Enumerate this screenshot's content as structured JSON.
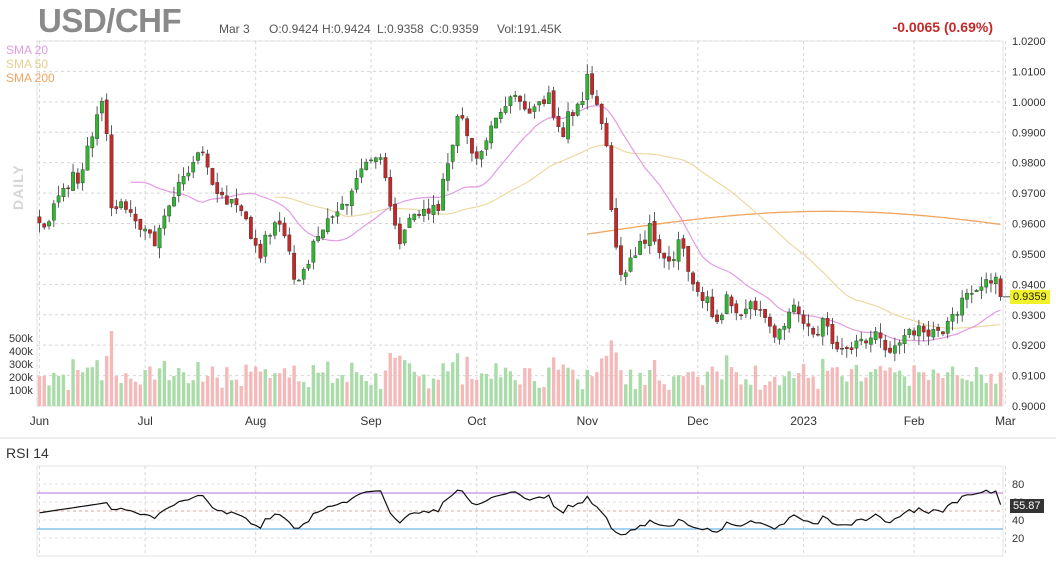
{
  "header": {
    "symbol": "USD/CHF",
    "date": "Mar 3",
    "open": "O:0.9424",
    "high": "H:0.9424",
    "low": "L:0.9358",
    "close": "C:0.9359",
    "volume": "Vol:191.45K",
    "change": "-0.0065 (0.69%)"
  },
  "legend": {
    "sma20": "SMA 20",
    "sma50": "SMA 50",
    "sma200": "SMA 200",
    "daily": "DAILY",
    "rsi_title": "RSI 14"
  },
  "last_price_label": "0.9359",
  "rsi_last_label": "55.87",
  "colors": {
    "up": "#2fb52f",
    "down": "#c62828",
    "vol_up": "#a9dca9",
    "vol_down": "#f6b9b9",
    "sma20": "#e39be3",
    "sma50": "#ecd9a3",
    "sma200": "#f0a55e",
    "rsi_line": "#111111",
    "rsi_upper": "#c58ee6",
    "rsi_lower": "#6fb6e8",
    "last_tag": "#f2f22a"
  },
  "chart_data": {
    "type": "candlestick",
    "title": "USD/CHF",
    "period": "Daily",
    "x_labels": [
      "Jun",
      "Jul",
      "Aug",
      "Sep",
      "Oct",
      "Nov",
      "Dec",
      "2023",
      "Feb",
      "Mar"
    ],
    "x_label_bar_index": [
      0,
      22,
      45,
      69,
      91,
      114,
      137,
      159,
      182,
      201
    ],
    "price_axis": {
      "ticks": [
        "1.0200",
        "1.0100",
        "1.0000",
        "0.9900",
        "0.9800",
        "0.9700",
        "0.9600",
        "0.9500",
        "0.9400",
        "0.9300",
        "0.9200",
        "0.9100",
        "0.9000"
      ],
      "range": [
        0.9,
        1.02
      ]
    },
    "volume_axis": {
      "ticks": [
        "500k",
        "400k",
        "300k",
        "200k",
        "100k"
      ],
      "max": 650000
    },
    "rsi_axis": {
      "ticks": [
        "80",
        "60",
        "40",
        "20"
      ],
      "range": [
        0,
        100
      ],
      "upper_band": 70,
      "lower_band": 30
    },
    "close": [
      0.9602,
      0.9588,
      0.9606,
      0.9665,
      0.9691,
      0.9716,
      0.9714,
      0.9769,
      0.9732,
      0.9777,
      0.9855,
      0.9885,
      0.9958,
      1.0002,
      0.9895,
      0.9651,
      0.9648,
      0.9672,
      0.9646,
      0.9636,
      0.9608,
      0.958,
      0.9582,
      0.9568,
      0.9526,
      0.9585,
      0.9625,
      0.9658,
      0.9686,
      0.9736,
      0.9755,
      0.9766,
      0.9801,
      0.9833,
      0.9832,
      0.9785,
      0.9728,
      0.9698,
      0.9694,
      0.9663,
      0.968,
      0.9661,
      0.9642,
      0.9615,
      0.955,
      0.9528,
      0.9486,
      0.9562,
      0.9561,
      0.9603,
      0.9597,
      0.9559,
      0.9509,
      0.9416,
      0.9414,
      0.9449,
      0.9466,
      0.9542,
      0.9558,
      0.9579,
      0.9616,
      0.9623,
      0.9639,
      0.9664,
      0.9663,
      0.9707,
      0.9749,
      0.978,
      0.9802,
      0.9809,
      0.9816,
      0.9817,
      0.975,
      0.9657,
      0.9594,
      0.9533,
      0.9579,
      0.9618,
      0.9631,
      0.9626,
      0.9647,
      0.9633,
      0.966,
      0.9642,
      0.9746,
      0.9797,
      0.9858,
      0.9953,
      0.9946,
      0.9888,
      0.9831,
      0.9814,
      0.9837,
      0.9872,
      0.9921,
      0.9947,
      0.9966,
      0.9985,
      1.0017,
      1.0022,
      1.0001,
      0.9976,
      0.9962,
      0.9984,
      1.0001,
      0.9994,
      1.003,
      0.9949,
      0.9918,
      0.9885,
      0.9968,
      0.9954,
      0.9993,
      1.0002,
      1.0091,
      1.0024,
      0.9991,
      0.9928,
      0.9855,
      0.9645,
      0.9522,
      0.9432,
      0.9438,
      0.9487,
      0.9494,
      0.9542,
      0.9534,
      0.9601,
      0.9541,
      0.9504,
      0.9486,
      0.9476,
      0.9482,
      0.9547,
      0.9518,
      0.9442,
      0.9401,
      0.9376,
      0.9346,
      0.9359,
      0.9293,
      0.9277,
      0.9299,
      0.9366,
      0.9329,
      0.9306,
      0.9299,
      0.9319,
      0.9343,
      0.9316,
      0.9314,
      0.929,
      0.9262,
      0.9226,
      0.9253,
      0.9262,
      0.9309,
      0.9332,
      0.9303,
      0.9271,
      0.9262,
      0.9236,
      0.9234,
      0.9288,
      0.9262,
      0.9205,
      0.9187,
      0.9188,
      0.9188,
      0.9185,
      0.9214,
      0.922,
      0.9207,
      0.9224,
      0.9245,
      0.9223,
      0.9184,
      0.9176,
      0.9198,
      0.9208,
      0.9232,
      0.9252,
      0.9233,
      0.9264,
      0.9243,
      0.9229,
      0.9252,
      0.9248,
      0.9237,
      0.9279,
      0.9302,
      0.9301,
      0.9355,
      0.9371,
      0.9371,
      0.9381,
      0.9392,
      0.9416,
      0.9404,
      0.9424,
      0.9359
    ],
    "rsi_last": 55.87,
    "series": [
      {
        "name": "SMA 20"
      },
      {
        "name": "SMA 50"
      },
      {
        "name": "SMA 200"
      }
    ]
  }
}
